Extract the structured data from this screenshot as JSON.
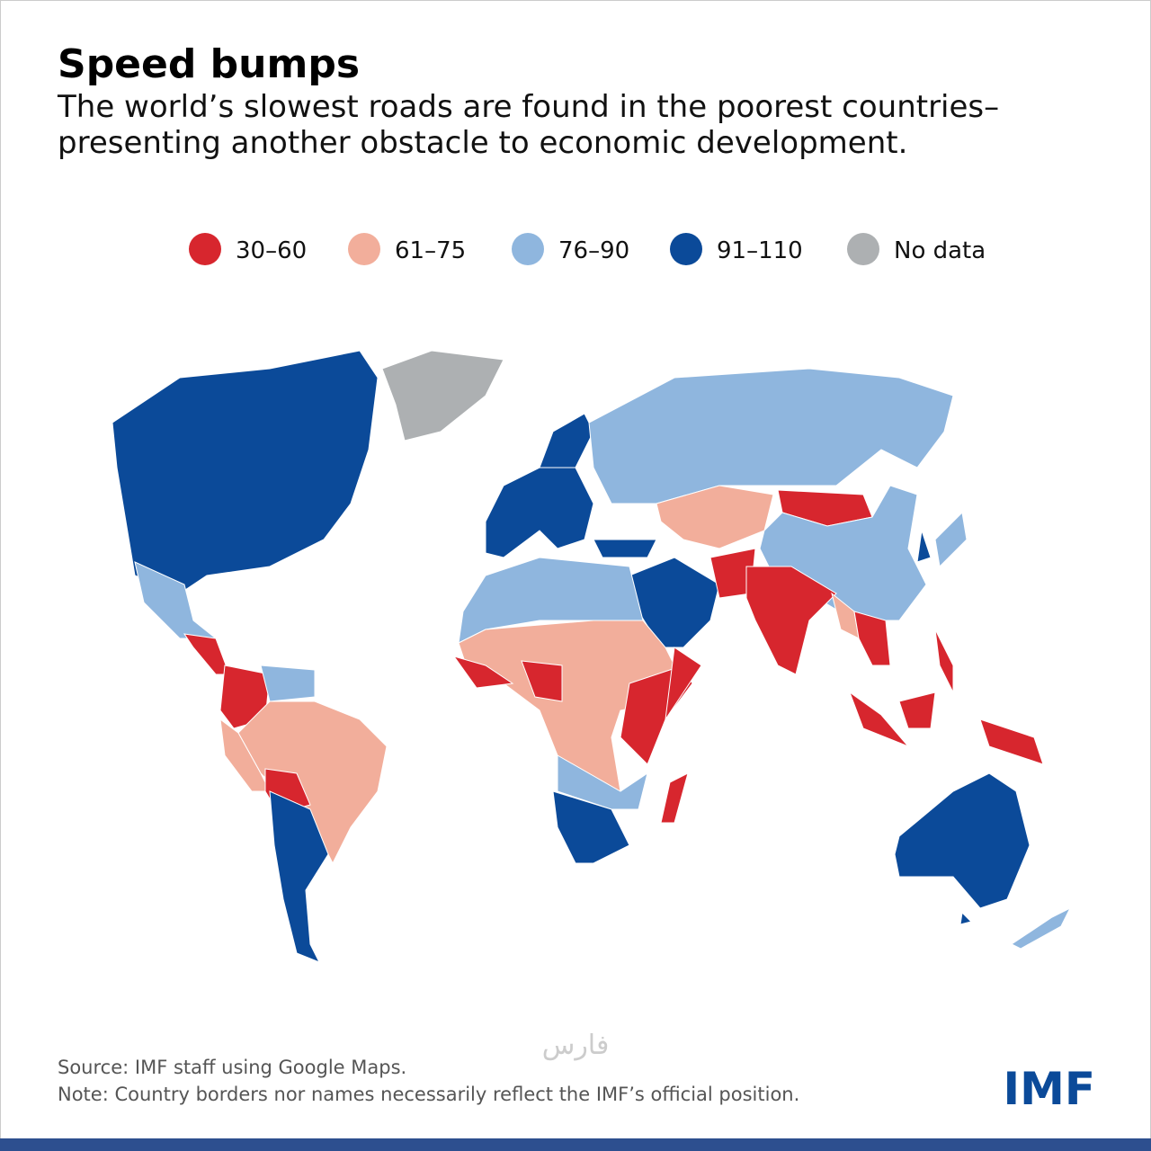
{
  "header": {
    "title": "Speed bumps",
    "subtitle": [
      "The world’s slowest roads are found in the poorest countries–",
      "presenting another obstacle to economic development."
    ]
  },
  "legend": {
    "items": [
      {
        "label": "30–60",
        "color": "#d7262e"
      },
      {
        "label": "61–75",
        "color": "#f2ae9b"
      },
      {
        "label": "76–90",
        "color": "#8fb6de"
      },
      {
        "label": "91–110",
        "color": "#0b4a99"
      },
      {
        "label": "No data",
        "color": "#adb0b2"
      }
    ]
  },
  "footer": {
    "source": "Source: IMF staff using Google Maps.",
    "note": "Note: Country borders nor names necessarily reflect the IMF’s official position.",
    "logo": "IMF",
    "watermark": "فارس"
  }
}
